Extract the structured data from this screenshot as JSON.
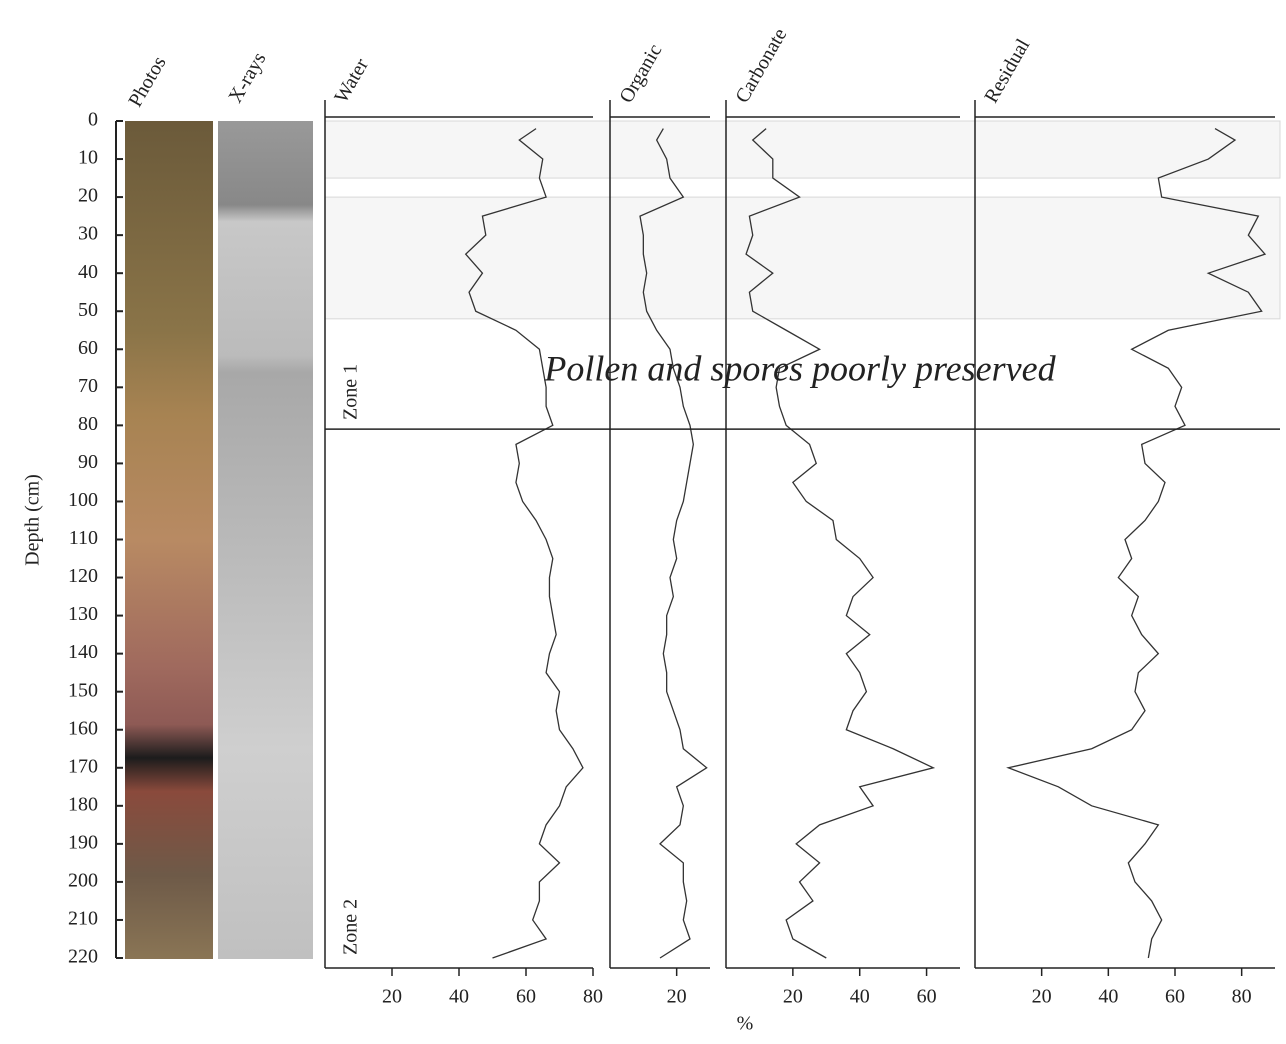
{
  "chart_data": {
    "type": "line",
    "y_label": "Depth (cm)",
    "x_label": "%",
    "column_titles": [
      "Photos",
      "X-rays"
    ],
    "annotation": "Pollen and spores poorly preserved",
    "zones": [
      "Zone 1",
      "Zone 2"
    ],
    "zone_boundary": 81,
    "shaded": [
      [
        0,
        15
      ],
      [
        20,
        52
      ]
    ],
    "ylim": [
      0,
      220
    ],
    "yticks": [
      0,
      10,
      20,
      30,
      40,
      50,
      60,
      70,
      80,
      90,
      100,
      110,
      120,
      130,
      140,
      150,
      160,
      170,
      180,
      190,
      200,
      210,
      220
    ],
    "y": [
      2,
      5,
      10,
      15,
      20,
      25,
      30,
      35,
      40,
      45,
      50,
      55,
      60,
      65,
      70,
      75,
      80,
      85,
      90,
      95,
      100,
      105,
      110,
      115,
      120,
      125,
      130,
      135,
      140,
      145,
      150,
      155,
      160,
      165,
      170,
      175,
      180,
      185,
      190,
      195,
      200,
      205,
      210,
      215,
      220
    ],
    "series": [
      {
        "name": "Water",
        "color": "#333333",
        "xlim": [
          0,
          80
        ],
        "xticks": [
          20,
          40,
          60,
          80
        ],
        "values": [
          63,
          58,
          65,
          64,
          66,
          47,
          48,
          42,
          47,
          43,
          45,
          57,
          64,
          65,
          66,
          66,
          68,
          57,
          58,
          57,
          59,
          63,
          66,
          68,
          67,
          67,
          68,
          69,
          67,
          66,
          70,
          69,
          70,
          74,
          77,
          72,
          70,
          66,
          64,
          70,
          64,
          64,
          62,
          66,
          50
        ]
      },
      {
        "name": "Organic",
        "color": "#333333",
        "xlim": [
          0,
          30
        ],
        "xticks": [
          20
        ],
        "values": [
          16,
          14,
          17,
          18,
          22,
          9,
          10,
          10,
          11,
          10,
          11,
          14,
          18,
          19,
          21,
          22,
          24,
          25,
          24,
          23,
          22,
          20,
          19,
          20,
          18,
          19,
          17,
          17,
          16,
          17,
          17,
          19,
          21,
          22,
          29,
          20,
          22,
          21,
          15,
          22,
          22,
          23,
          22,
          24,
          15
        ]
      },
      {
        "name": "Carbonate",
        "color": "#333333",
        "xlim": [
          0,
          70
        ],
        "xticks": [
          20,
          40,
          60
        ],
        "values": [
          12,
          8,
          14,
          14,
          22,
          7,
          8,
          6,
          14,
          7,
          8,
          18,
          28,
          16,
          15,
          16,
          18,
          25,
          27,
          20,
          24,
          32,
          33,
          40,
          44,
          38,
          36,
          43,
          36,
          40,
          42,
          38,
          36,
          50,
          62,
          40,
          44,
          28,
          21,
          28,
          22,
          26,
          18,
          20,
          30
        ]
      },
      {
        "name": "Residual",
        "color": "#333333",
        "xlim": [
          0,
          90
        ],
        "xticks": [
          20,
          40,
          60,
          80
        ],
        "values": [
          72,
          78,
          70,
          55,
          56,
          85,
          82,
          87,
          70,
          82,
          86,
          58,
          47,
          58,
          62,
          60,
          63,
          50,
          51,
          57,
          55,
          51,
          45,
          47,
          43,
          49,
          47,
          50,
          55,
          49,
          48,
          51,
          47,
          35,
          10,
          25,
          35,
          55,
          51,
          46,
          48,
          53,
          56,
          53,
          52
        ]
      }
    ]
  }
}
